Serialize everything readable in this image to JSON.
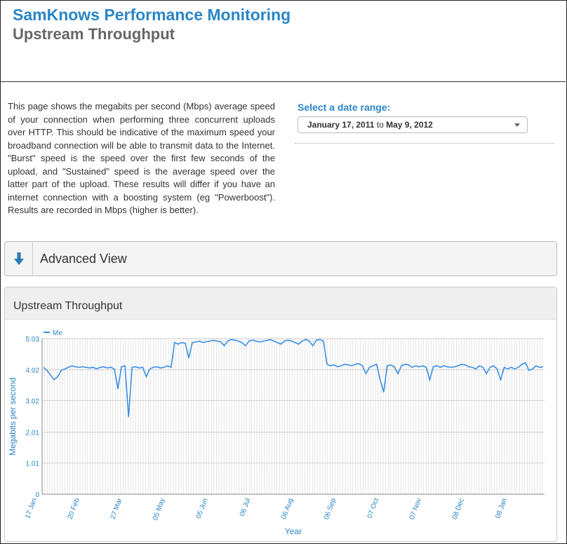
{
  "header": {
    "title": "SamKnows Performance Monitoring",
    "subtitle": "Upstream Throughput"
  },
  "description": "This page shows the megabits per second (Mbps) average speed of your connection when performing three concurrent uploads over HTTP. This should be indicative of the maximum speed your broadband connection will be able to transmit data to the Internet. \"Burst\" speed is the speed over the first few seconds of the upload, and \"Sustained\" speed is the average speed over the latter part of the upload. These results will differ if you have an internet connection with a boosting system (eg \"Powerboost\"). Results are recorded in Mbps (higher is better).",
  "date_range": {
    "label": "Select a date range:",
    "start": "January 17, 2011",
    "to": "to",
    "end": "May 9, 2012"
  },
  "advanced": {
    "label": "Advanced View",
    "icon": "arrow-down-icon"
  },
  "panel": {
    "title": "Upstream Throughput"
  },
  "colors": {
    "accent": "#2a86c6",
    "line": "#3a8ee6",
    "grid": "#cccccc"
  },
  "chart_data": {
    "type": "line",
    "xlabel": "Year",
    "ylabel": "Megabits per second",
    "legend": "top-left",
    "ylim": [
      0,
      5.03
    ],
    "y_ticks": [
      "0",
      "1.01",
      "2.01",
      "3.02",
      "4.02",
      "5.03"
    ],
    "x_ticks": [
      "17 Jan",
      "20 Feb",
      "27 Mar",
      "05 May",
      "05 Jun",
      "06 Jul",
      "06 Aug",
      "06 Sep",
      "07 Oct",
      "07 Nov",
      "08 Dec",
      "08 Jan"
    ],
    "series": [
      {
        "name": "Me",
        "x_range": [
          "2011-01-17",
          "2012-01-25"
        ],
        "values": [
          4.1,
          4.0,
          3.85,
          3.7,
          3.8,
          4.0,
          4.05,
          4.1,
          4.15,
          4.12,
          4.1,
          4.12,
          4.1,
          4.08,
          4.1,
          4.05,
          4.1,
          4.12,
          4.08,
          4.1,
          4.05,
          3.4,
          4.12,
          4.15,
          2.5,
          4.1,
          4.12,
          4.08,
          4.1,
          3.8,
          4.05,
          4.1,
          4.12,
          4.08,
          4.1,
          4.15,
          4.1,
          4.9,
          4.85,
          4.9,
          4.88,
          4.4,
          4.9,
          4.92,
          4.95,
          4.9,
          4.93,
          4.95,
          4.97,
          4.95,
          4.93,
          4.8,
          4.95,
          5.0,
          4.98,
          4.95,
          4.9,
          4.8,
          4.95,
          4.98,
          4.95,
          4.92,
          4.95,
          4.97,
          5.0,
          4.95,
          4.9,
          4.85,
          4.95,
          4.98,
          4.95,
          4.9,
          4.85,
          4.95,
          5.0,
          4.95,
          4.8,
          4.98,
          5.0,
          4.95,
          4.2,
          4.15,
          4.18,
          4.12,
          4.15,
          4.2,
          4.18,
          4.15,
          4.2,
          4.22,
          4.15,
          3.9,
          4.1,
          4.15,
          4.2,
          3.7,
          3.3,
          4.15,
          4.18,
          4.12,
          3.9,
          4.15,
          4.2,
          4.18,
          4.1,
          4.15,
          4.12,
          4.15,
          4.1,
          3.7,
          4.12,
          4.15,
          4.1,
          4.15,
          4.12,
          4.1,
          4.12,
          4.15,
          4.2,
          4.18,
          4.12,
          4.1,
          4.05,
          4.15,
          4.1,
          3.9,
          4.1,
          4.15,
          4.05,
          3.7,
          4.1,
          4.05,
          4.1,
          4.05,
          4.1,
          4.2,
          4.25,
          4.0,
          4.05,
          4.15,
          4.1,
          4.12
        ]
      }
    ]
  }
}
